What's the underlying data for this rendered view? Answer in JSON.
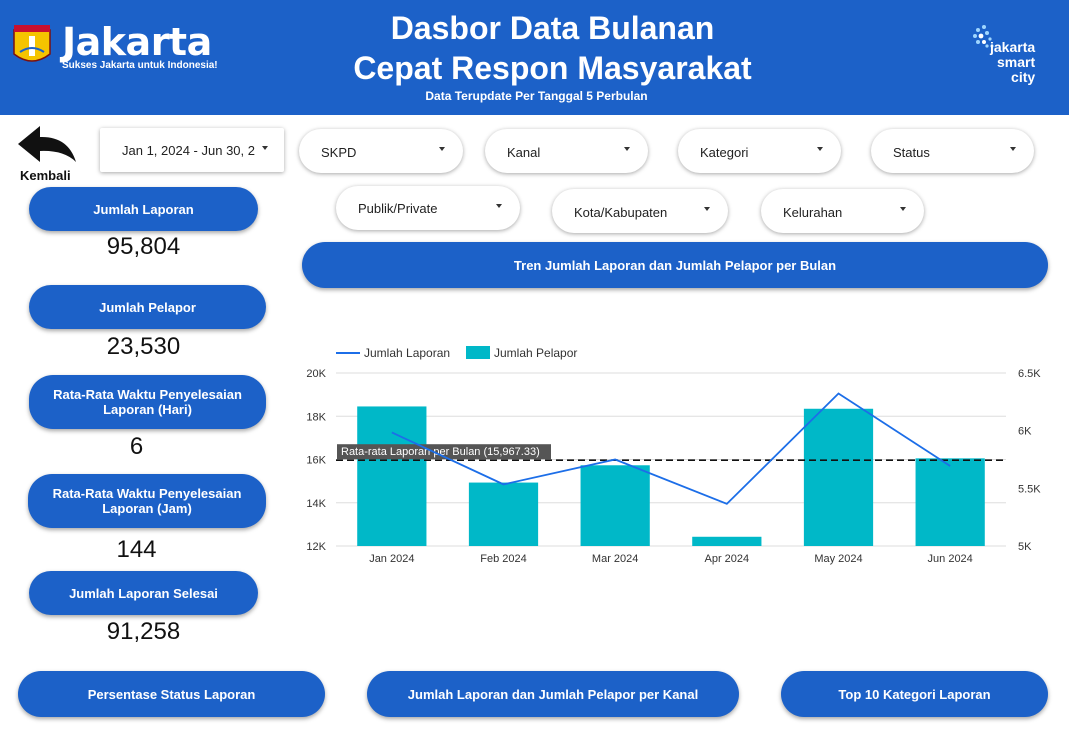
{
  "header": {
    "brand_name": "Jakarta",
    "brand_tagline": "Sukses Jakarta untuk Indonesia!",
    "logo_seal_text": "JAYA RAYA",
    "title_line1": "Dasbor Data Bulanan",
    "title_line2": "Cepat Respon Masyarakat",
    "subtitle": "Data Terupdate Per Tanggal 5 Perbulan",
    "smart_city_line1": "jakarta",
    "smart_city_line2": "smart",
    "smart_city_line3": "city",
    "bg_color": "#1c61c8"
  },
  "back": {
    "label": "Kembali",
    "icon": "back-arrow-icon"
  },
  "filters": {
    "date_range": "Jan 1, 2024 - Jun 30, 2",
    "skpd": "SKPD",
    "kanal": "Kanal",
    "kategori": "Kategori",
    "status": "Status",
    "publik_private": "Publik/Private",
    "kota_kabupaten": "Kota/Kabupaten",
    "kelurahan": "Kelurahan"
  },
  "kpis": [
    {
      "label": "Jumlah Laporan",
      "value": "95,804"
    },
    {
      "label": "Jumlah Pelapor",
      "value": "23,530"
    },
    {
      "label": "Rata-Rata Waktu Penyelesaian Laporan (Hari)",
      "value": "6"
    },
    {
      "label": "Rata-Rata Waktu Penyelesaian Laporan (Jam)",
      "value": "144"
    },
    {
      "label": "Jumlah Laporan Selesai",
      "value": "91,258"
    }
  ],
  "chart_title": "Tren Jumlah Laporan dan Jumlah Pelapor per Bulan",
  "chart_data": {
    "type": "bar",
    "categories": [
      "Jan 2024",
      "Feb 2024",
      "Mar 2024",
      "Apr 2024",
      "May 2024",
      "Jun 2024"
    ],
    "series": [
      {
        "name": "Jumlah Pelapor",
        "type": "bar",
        "axis": "right",
        "color": "#00b8c8",
        "values": [
          6210,
          5550,
          5700,
          5080,
          6190,
          5760
        ]
      },
      {
        "name": "Jumlah Laporan",
        "type": "line",
        "axis": "left",
        "color": "#1c6ee8",
        "values": [
          17250,
          14850,
          16000,
          13950,
          19050,
          15700
        ]
      }
    ],
    "ylim_left": [
      12000,
      20000
    ],
    "yticks_left": [
      "12K",
      "14K",
      "16K",
      "18K",
      "20K"
    ],
    "ylim_right": [
      5000,
      6500
    ],
    "yticks_right": [
      "5K",
      "5.5K",
      "6K",
      "6.5K"
    ],
    "reference_line": {
      "label": "Rata-rata Laporan per Bulan (15,967.33)",
      "value": 15967.33,
      "axis": "left"
    },
    "legend_position": "top-left",
    "grid": true
  },
  "bottom_buttons": [
    "Persentase Status Laporan",
    "Jumlah Laporan dan Jumlah Pelapor per Kanal",
    "Top 10 Kategori Laporan"
  ]
}
